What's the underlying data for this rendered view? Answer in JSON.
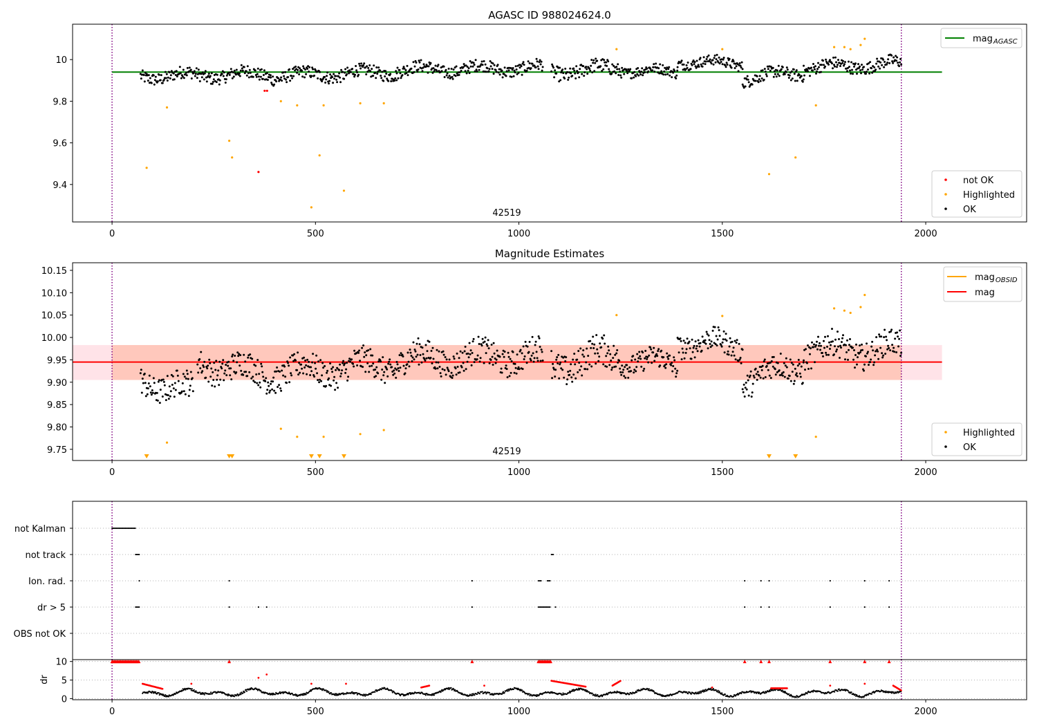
{
  "chart_data": [
    {
      "type": "scatter",
      "title": "AGASC ID 988024624.0",
      "xlim": [
        -97,
        2248
      ],
      "ylim": [
        9.22,
        10.17
      ],
      "xticks": [
        0,
        500,
        1000,
        1500,
        2000
      ],
      "yticks": [
        9.4,
        9.6,
        9.8,
        10.0
      ],
      "vlines": [
        0,
        1940
      ],
      "annotation": {
        "text": "42519",
        "x": 970
      },
      "hline": {
        "name": "mag_AGASC",
        "value": 9.94,
        "x": [
          0,
          2040
        ],
        "color": "#008000"
      },
      "legend_upper": {
        "position": "upper right",
        "entries": [
          {
            "label": "mag",
            "sub": "AGASC",
            "color": "#008000"
          }
        ]
      },
      "legend_lower": {
        "position": "lower right",
        "entries": [
          {
            "label": "not OK",
            "color": "#ff0000"
          },
          {
            "label": "Highlighted",
            "color": "#ffa500"
          },
          {
            "label": "OK",
            "color": "#000000"
          }
        ]
      },
      "series": [
        {
          "name": "OK",
          "color": "#000000",
          "segments": [
            {
              "x0": 70,
              "x1": 390,
              "y0": 9.92,
              "y1": 9.93,
              "spread": 0.03
            },
            {
              "x0": 390,
              "x1": 700,
              "y0": 9.92,
              "y1": 9.94,
              "spread": 0.03
            },
            {
              "x0": 700,
              "x1": 1060,
              "y0": 9.95,
              "y1": 9.96,
              "spread": 0.03
            },
            {
              "x0": 1080,
              "x1": 1250,
              "y0": 9.94,
              "y1": 9.96,
              "spread": 0.035
            },
            {
              "x0": 1250,
              "x1": 1390,
              "y0": 9.95,
              "y1": 9.94,
              "spread": 0.025
            },
            {
              "x0": 1390,
              "x1": 1550,
              "y0": 9.99,
              "y1": 9.98,
              "spread": 0.025
            },
            {
              "x0": 1550,
              "x1": 1700,
              "y0": 9.91,
              "y1": 9.94,
              "spread": 0.03
            },
            {
              "x0": 1700,
              "x1": 1940,
              "y0": 9.96,
              "y1": 9.98,
              "spread": 0.03
            }
          ]
        },
        {
          "name": "Highlighted",
          "color": "#ffa500",
          "points": [
            [
              85,
              9.48
            ],
            [
              135,
              9.77
            ],
            [
              288,
              9.61
            ],
            [
              295,
              9.53
            ],
            [
              415,
              9.8
            ],
            [
              455,
              9.78
            ],
            [
              490,
              9.29
            ],
            [
              510,
              9.54
            ],
            [
              520,
              9.78
            ],
            [
              570,
              9.37
            ],
            [
              610,
              9.79
            ],
            [
              668,
              9.79
            ],
            [
              1240,
              10.05
            ],
            [
              1500,
              10.05
            ],
            [
              1615,
              9.45
            ],
            [
              1680,
              9.53
            ],
            [
              1730,
              9.78
            ],
            [
              1775,
              10.06
            ],
            [
              1800,
              10.06
            ],
            [
              1815,
              10.05
            ],
            [
              1840,
              10.07
            ],
            [
              1850,
              10.1
            ]
          ]
        },
        {
          "name": "not OK",
          "color": "#ff0000",
          "points": [
            [
              360,
              9.46
            ],
            [
              375,
              9.85
            ],
            [
              381,
              9.85
            ]
          ]
        }
      ]
    },
    {
      "type": "scatter",
      "title": "Magnitude Estimates",
      "xlim": [
        -97,
        2248
      ],
      "ylim": [
        9.725,
        10.167
      ],
      "xticks": [
        0,
        500,
        1000,
        1500,
        2000
      ],
      "yticks": [
        9.75,
        9.8,
        9.85,
        9.9,
        9.95,
        10.0,
        10.05,
        10.1,
        10.15
      ],
      "ytick_labels": [
        "9.75",
        "9.80",
        "9.85",
        "9.90",
        "9.95",
        "10.00",
        "10.05",
        "10.10",
        "10.15"
      ],
      "vlines": [
        0,
        1940
      ],
      "annotation": {
        "text": "42519",
        "x": 970
      },
      "mag_line": {
        "name": "mag",
        "value": 9.945,
        "x": [
          -97,
          2040
        ],
        "color": "#ff0000"
      },
      "bands": [
        {
          "x": [
            -97,
            2040
          ],
          "y": [
            9.905,
            9.983
          ],
          "color": "#ffc0cb"
        },
        {
          "x": [
            0,
            1940
          ],
          "y": [
            9.905,
            9.983
          ],
          "color": "#ffa07a"
        }
      ],
      "legend_upper": {
        "position": "upper right",
        "entries": [
          {
            "label": "mag",
            "sub": "OBSID",
            "color": "#ffa500"
          },
          {
            "label": "mag",
            "sub": "",
            "color": "#ff0000"
          }
        ]
      },
      "legend_lower": {
        "position": "lower right",
        "entries": [
          {
            "label": "Highlighted",
            "color": "#ffa500"
          },
          {
            "label": "OK",
            "color": "#000000"
          }
        ]
      },
      "below_markers_x": [
        85,
        288,
        295,
        490,
        510,
        570,
        1615,
        1680
      ],
      "series": [
        {
          "name": "OK",
          "color": "#000000",
          "segments": [
            {
              "x0": 70,
              "x1": 200,
              "y0": 9.905,
              "y1": 9.88,
              "spread": 0.03
            },
            {
              "x0": 210,
              "x1": 390,
              "y0": 9.945,
              "y1": 9.915,
              "spread": 0.03
            },
            {
              "x0": 390,
              "x1": 700,
              "y0": 9.92,
              "y1": 9.94,
              "spread": 0.03
            },
            {
              "x0": 700,
              "x1": 1060,
              "y0": 9.95,
              "y1": 9.96,
              "spread": 0.03
            },
            {
              "x0": 1080,
              "x1": 1250,
              "y0": 9.94,
              "y1": 9.96,
              "spread": 0.035
            },
            {
              "x0": 1250,
              "x1": 1390,
              "y0": 9.95,
              "y1": 9.94,
              "spread": 0.025
            },
            {
              "x0": 1390,
              "x1": 1550,
              "y0": 9.99,
              "y1": 9.98,
              "spread": 0.025
            },
            {
              "x0": 1550,
              "x1": 1700,
              "y0": 9.905,
              "y1": 9.94,
              "spread": 0.03
            },
            {
              "x0": 1700,
              "x1": 1940,
              "y0": 9.97,
              "y1": 9.975,
              "spread": 0.03
            }
          ]
        },
        {
          "name": "Highlighted",
          "color": "#ffa500",
          "points": [
            [
              135,
              9.765
            ],
            [
              415,
              9.796
            ],
            [
              455,
              9.778
            ],
            [
              520,
              9.778
            ],
            [
              610,
              9.784
            ],
            [
              668,
              9.793
            ],
            [
              1240,
              10.05
            ],
            [
              1500,
              10.048
            ],
            [
              1730,
              9.778
            ],
            [
              1775,
              10.065
            ],
            [
              1800,
              10.06
            ],
            [
              1815,
              10.055
            ],
            [
              1840,
              10.068
            ],
            [
              1850,
              10.095
            ]
          ]
        }
      ]
    },
    {
      "type": "scatter",
      "title": "",
      "xlim": [
        -97,
        2248
      ],
      "categories": [
        "not Kalman",
        "not track",
        "Ion. rad.",
        "dr > 5",
        "OBS not OK"
      ],
      "vlines": [
        0,
        1940
      ],
      "flags": [
        {
          "label": "not Kalman",
          "ranges": [
            [
              0,
              58
            ]
          ],
          "points": []
        },
        {
          "label": "not track",
          "ranges": [
            [
              58,
              68
            ],
            [
              1080,
              1085
            ]
          ],
          "points": []
        },
        {
          "label": "Ion. rad.",
          "ranges": [
            [
              1048,
              1055
            ],
            [
              1070,
              1078
            ]
          ],
          "points": [
            67,
            288,
            885,
            1555,
            1595,
            1615,
            1765,
            1850,
            1910
          ]
        },
        {
          "label": "dr > 5",
          "ranges": [
            [
              58,
              68
            ],
            [
              1048,
              1078
            ]
          ],
          "points": [
            288,
            360,
            380,
            885,
            1090,
            1555,
            1595,
            1615,
            1765,
            1850,
            1910
          ]
        },
        {
          "label": "OBS not OK",
          "ranges": [],
          "points": []
        }
      ]
    },
    {
      "type": "scatter",
      "title": "",
      "ylabel": "dr",
      "xlim": [
        -97,
        2248
      ],
      "ylim": [
        -0.3,
        10.5
      ],
      "xticks": [
        0,
        500,
        1000,
        1500,
        2000
      ],
      "yticks": [
        0,
        5,
        10
      ],
      "vlines": [
        0,
        1940
      ],
      "clipped_markers": {
        "value": 10,
        "ranges": [
          [
            0,
            68
          ],
          [
            1048,
            1078
          ]
        ],
        "points": [
          288,
          885,
          1555,
          1595,
          1615,
          1765,
          1850,
          1910
        ]
      },
      "series": [
        {
          "name": "ok",
          "color": "#000000",
          "base": 1.6,
          "amplitude": 1.1,
          "x": [
            75,
            1940
          ]
        },
        {
          "name": "red",
          "color": "#ff0000",
          "segments": [
            {
              "x0": 75,
              "x1": 125,
              "y0": 4.0,
              "y1": 2.6
            },
            {
              "x0": 760,
              "x1": 780,
              "y0": 3.0,
              "y1": 3.5
            },
            {
              "x0": 1080,
              "x1": 1165,
              "y0": 4.8,
              "y1": 3.2
            },
            {
              "x0": 1230,
              "x1": 1250,
              "y0": 3.5,
              "y1": 4.8
            },
            {
              "x0": 1620,
              "x1": 1660,
              "y0": 2.8,
              "y1": 2.8
            },
            {
              "x0": 1920,
              "x1": 1940,
              "y0": 3.5,
              "y1": 2.2
            }
          ],
          "points": [
            [
              195,
              4.0
            ],
            [
              360,
              5.6
            ],
            [
              380,
              6.5
            ],
            [
              490,
              4.0
            ],
            [
              575,
              4.0
            ],
            [
              915,
              3.5
            ],
            [
              1475,
              3.0
            ],
            [
              1765,
              3.5
            ],
            [
              1850,
              4.0
            ]
          ]
        }
      ]
    }
  ]
}
